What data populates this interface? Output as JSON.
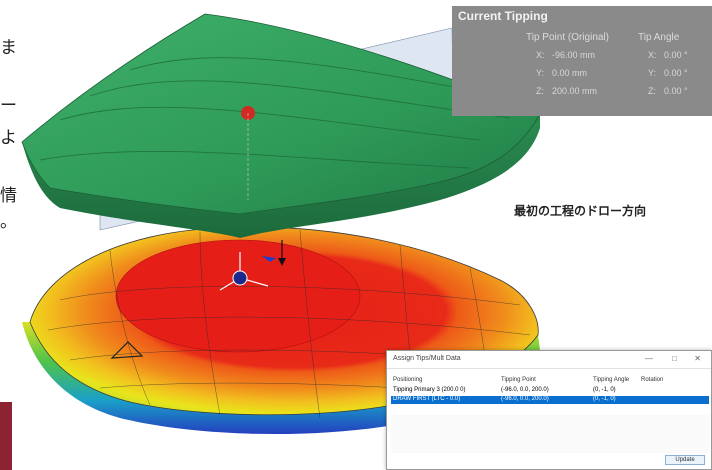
{
  "left_text_fragments": [
    "ま",
    "ー",
    "よ",
    "情",
    "。"
  ],
  "current_tipping": {
    "title": "Current Tipping",
    "col_point": "Tip Point (Original)",
    "col_angle": "Tip Angle",
    "rows": [
      {
        "axis": "X:",
        "value": "-96.00 mm",
        "angle_axis": "X:",
        "angle": "0.00 °"
      },
      {
        "axis": "Y:",
        "value": "0.00 mm",
        "angle_axis": "Y:",
        "angle": "0.00 °"
      },
      {
        "axis": "Z:",
        "value": "200.00 mm",
        "angle_axis": "Z:",
        "angle": "0.00 °"
      }
    ]
  },
  "caption": "最初の工程のドロー方向",
  "dialog": {
    "title": "Assign Tips/Mult Data",
    "controls": [
      "—",
      "□",
      "✕"
    ],
    "headers": [
      "Positioning",
      "Tipping Point",
      "Tipping Angle",
      "Rotation"
    ],
    "rows": [
      {
        "name": "Tipping Primary 3 (200.0 0)",
        "point": "(-96.0, 0.0, 200.0)",
        "angle": "(0, -1, 0)",
        "rotation": "",
        "selected": false
      },
      {
        "name": "DRAW FIRST (LTC - 0.0)",
        "point": "(-96.0, 0.0, 200.0)",
        "angle": "(0, -1, 0)",
        "rotation": "",
        "selected": true
      }
    ],
    "button": "Update"
  },
  "colors": {
    "upper_part": "#2f9a5a",
    "stress_red": "#e32018",
    "stress_orange": "#f07a18",
    "stress_yellow": "#f2e21a",
    "stress_green": "#6ccf3a",
    "stress_blue": "#2a4fc9",
    "panel_bg": "#8a8a8a",
    "selection": "#0a6fcf"
  }
}
